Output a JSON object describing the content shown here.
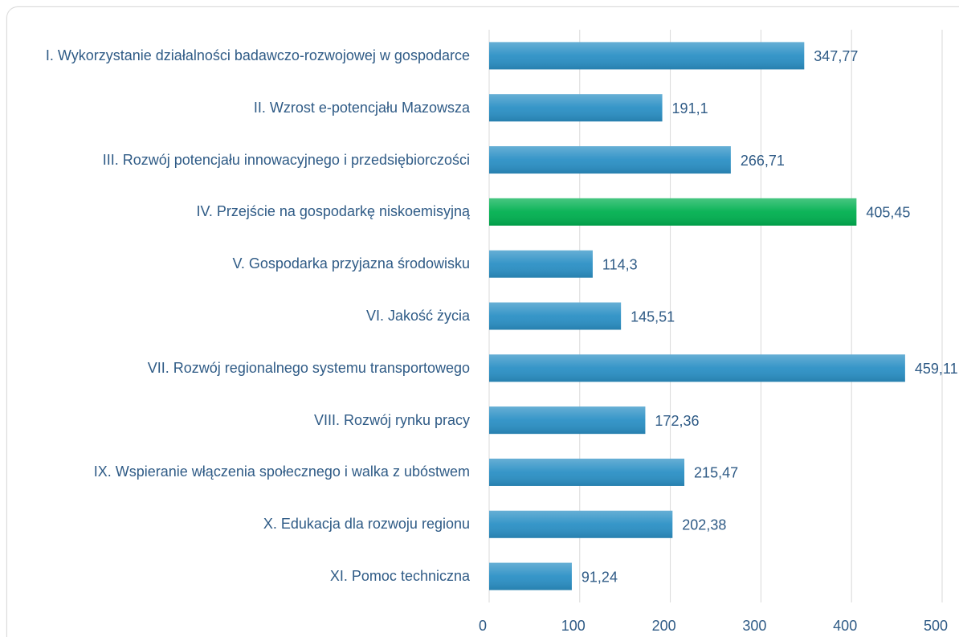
{
  "chart_data": {
    "type": "barh",
    "categories": [
      "I. Wykorzystanie działalności badawczo-rozwojowej w gospodarce",
      "II. Wzrost e-potencjału Mazowsza",
      "III. Rozwój potencjału innowacyjnego i przedsiębiorczości",
      "IV. Przejście na gospodarkę niskoemisyjną",
      "V. Gospodarka przyjazna środowisku",
      "VI. Jakość życia",
      "VII. Rozwój regionalnego systemu transportowego",
      "VIII. Rozwój rynku pracy",
      "IX. Wspieranie włączenia społecznego i walka z ubóstwem",
      "X. Edukacja dla rozwoju regionu",
      "XI. Pomoc techniczna"
    ],
    "values": [
      347.77,
      191.1,
      266.71,
      405.45,
      114.3,
      145.51,
      459.11,
      172.36,
      215.47,
      202.38,
      91.24
    ],
    "value_labels": [
      "347,77",
      "191,1",
      "266,71",
      "405,45",
      "114,3",
      "145,51",
      "459,11",
      "172,36",
      "215,47",
      "202,38",
      "91,24"
    ],
    "colors": [
      "#2b90c5",
      "#2b90c5",
      "#2b90c5",
      "#00b050",
      "#2b90c5",
      "#2b90c5",
      "#2b90c5",
      "#2b90c5",
      "#2b90c5",
      "#2b90c5",
      "#2b90c5"
    ],
    "xlim": [
      0,
      500
    ],
    "xticks": [
      0,
      100,
      200,
      300,
      400,
      500
    ],
    "grid": true
  }
}
